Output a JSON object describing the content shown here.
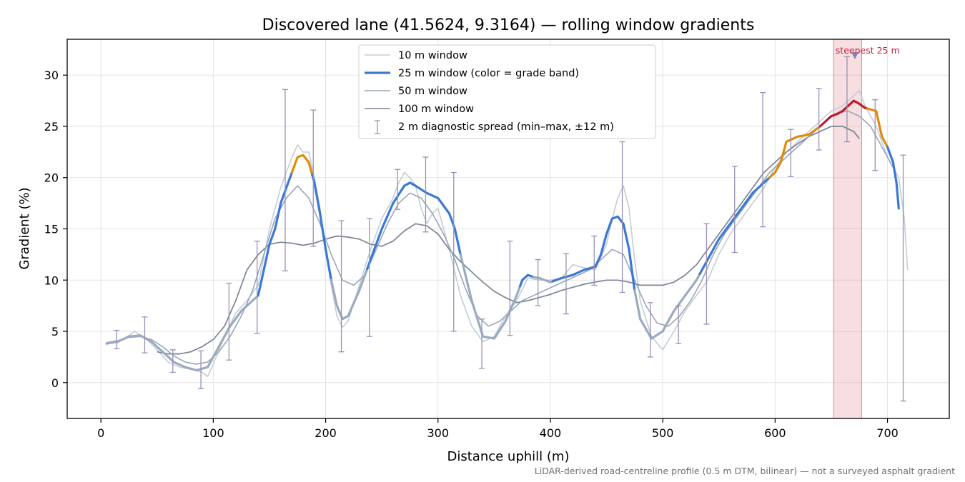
{
  "chart_data": {
    "type": "line",
    "title": "Discovered lane (41.5624, 9.3164) — rolling window gradients",
    "xlabel": "Distance uphill (m)",
    "ylabel": "Gradient (%)",
    "xlim": [
      -30,
      755
    ],
    "ylim": [
      -3.5,
      33.5
    ],
    "xticks": [
      0,
      100,
      200,
      300,
      400,
      500,
      600,
      700
    ],
    "yticks": [
      0,
      5,
      10,
      15,
      20,
      25,
      30
    ],
    "grid": true,
    "legend_position": "top-center",
    "footnote": "LiDAR-derived road-centreline profile (0.5 m DTM, bilinear) — not a surveyed asphalt gradient",
    "highlight": {
      "label": "steepest 25 m",
      "x_start": 652,
      "x_end": 677,
      "marker_x": 671,
      "marker_y": 31.9,
      "color": "#c0203a"
    },
    "colors": {
      "w10": "#c5ccd6",
      "w25_low": "#3a78d4",
      "w25_mid": "#9aabbd",
      "w25_high": "#e08a0a",
      "w25_steep": "#b81c30",
      "w50": "#9aa5b8",
      "w100": "#7b8494",
      "errorbar": "#9a90b8"
    },
    "series": [
      {
        "name": "10 m window",
        "key": "w10",
        "x": [
          5,
          15,
          25,
          30,
          40,
          50,
          60,
          70,
          80,
          90,
          95,
          100,
          110,
          120,
          130,
          140,
          150,
          160,
          165,
          170,
          175,
          180,
          185,
          190,
          195,
          200,
          205,
          210,
          215,
          220,
          230,
          240,
          250,
          260,
          265,
          270,
          275,
          280,
          285,
          290,
          295,
          300,
          310,
          320,
          330,
          340,
          350,
          360,
          370,
          380,
          390,
          400,
          410,
          420,
          430,
          440,
          450,
          455,
          460,
          465,
          470,
          475,
          480,
          490,
          500,
          510,
          520,
          530,
          540,
          550,
          560,
          570,
          580,
          590,
          600,
          610,
          620,
          630,
          640,
          650,
          660,
          665,
          670,
          675,
          680,
          690,
          700,
          710,
          715,
          718
        ],
        "y": [
          3.8,
          3.9,
          4.6,
          5.0,
          4.3,
          3.2,
          2.0,
          1.5,
          1.3,
          1.0,
          0.6,
          1.8,
          4.5,
          6.8,
          8.0,
          9.5,
          15.0,
          19.0,
          20.5,
          22.0,
          23.2,
          22.5,
          22.5,
          20.0,
          17.0,
          13.0,
          9.5,
          6.5,
          5.4,
          6.0,
          9.5,
          13.0,
          16.0,
          18.0,
          19.5,
          20.5,
          20.0,
          19.2,
          17.0,
          15.5,
          16.5,
          17.0,
          13.0,
          8.5,
          5.5,
          4.0,
          4.5,
          6.5,
          8.0,
          10.2,
          10.0,
          10.0,
          10.2,
          11.5,
          11.2,
          11.0,
          13.5,
          16.0,
          18.0,
          19.2,
          17.0,
          12.0,
          8.0,
          4.5,
          3.2,
          5.0,
          7.0,
          8.5,
          10.0,
          12.5,
          14.5,
          16.0,
          17.5,
          19.0,
          21.0,
          22.5,
          23.5,
          24.5,
          25.5,
          26.5,
          27.0,
          27.5,
          28.0,
          28.5,
          27.0,
          25.0,
          22.0,
          20.0,
          16.0,
          11.0
        ]
      },
      {
        "name": "25 m window (color = grade band)",
        "key": "w25",
        "x": [
          5,
          15,
          25,
          35,
          45,
          55,
          65,
          75,
          85,
          95,
          105,
          115,
          125,
          135,
          140,
          145,
          150,
          155,
          160,
          165,
          170,
          175,
          180,
          185,
          190,
          195,
          200,
          205,
          210,
          215,
          220,
          230,
          240,
          250,
          260,
          270,
          275,
          280,
          290,
          300,
          310,
          315,
          320,
          330,
          340,
          350,
          360,
          370,
          375,
          380,
          385,
          390,
          400,
          410,
          420,
          430,
          440,
          445,
          450,
          455,
          460,
          465,
          470,
          475,
          480,
          490,
          500,
          510,
          520,
          530,
          540,
          550,
          560,
          570,
          580,
          590,
          600,
          605,
          610,
          620,
          630,
          640,
          645,
          650,
          655,
          660,
          665,
          670,
          675,
          680,
          690,
          695,
          700,
          705,
          708,
          710
        ],
        "y": [
          3.8,
          4.0,
          4.5,
          4.6,
          4.0,
          3.0,
          2.0,
          1.5,
          1.2,
          1.5,
          3.5,
          5.5,
          7.0,
          8.0,
          8.5,
          11.0,
          13.5,
          15.0,
          17.5,
          19.0,
          20.5,
          22.0,
          22.2,
          21.5,
          19.5,
          16.5,
          13.0,
          10.0,
          7.5,
          6.2,
          6.5,
          9.0,
          12.0,
          15.0,
          17.5,
          19.2,
          19.5,
          19.2,
          18.5,
          18.0,
          16.5,
          15.0,
          12.5,
          8.0,
          4.5,
          4.3,
          6.0,
          8.5,
          10.0,
          10.5,
          10.3,
          10.2,
          9.8,
          10.2,
          10.5,
          11.0,
          11.3,
          12.5,
          14.5,
          16.0,
          16.2,
          15.5,
          13.0,
          9.0,
          6.2,
          4.3,
          5.0,
          7.0,
          8.5,
          10.0,
          12.0,
          14.0,
          15.5,
          17.0,
          18.5,
          19.5,
          20.5,
          21.5,
          23.5,
          24.0,
          24.2,
          25.0,
          25.5,
          26.0,
          26.2,
          26.5,
          27.0,
          27.5,
          27.2,
          26.8,
          26.5,
          24.0,
          23.0,
          21.5,
          19.5,
          17.0
        ]
      },
      {
        "name": "50 m window",
        "key": "w50",
        "x": [
          5,
          15,
          25,
          35,
          45,
          55,
          65,
          75,
          85,
          95,
          105,
          115,
          125,
          135,
          145,
          155,
          165,
          175,
          185,
          195,
          205,
          215,
          225,
          235,
          245,
          255,
          265,
          275,
          285,
          295,
          305,
          315,
          325,
          335,
          345,
          355,
          365,
          375,
          385,
          395,
          405,
          415,
          425,
          435,
          445,
          455,
          465,
          475,
          485,
          495,
          505,
          515,
          525,
          535,
          545,
          555,
          565,
          575,
          585,
          595,
          605,
          615,
          625,
          635,
          645,
          655,
          665,
          675,
          685,
          695,
          705
        ],
        "y": [
          3.9,
          4.1,
          4.4,
          4.5,
          4.2,
          3.5,
          2.6,
          2.0,
          1.8,
          2.0,
          3.0,
          4.5,
          6.5,
          9.0,
          12.5,
          16.0,
          18.0,
          19.2,
          18.0,
          15.5,
          12.5,
          10.0,
          9.5,
          10.5,
          13.0,
          15.5,
          17.5,
          18.5,
          18.0,
          16.5,
          14.5,
          12.0,
          9.0,
          6.5,
          5.5,
          6.0,
          7.0,
          8.0,
          8.5,
          9.0,
          9.5,
          10.0,
          10.5,
          11.0,
          12.0,
          13.0,
          12.5,
          10.0,
          7.5,
          5.8,
          5.5,
          6.5,
          8.0,
          10.0,
          12.5,
          14.5,
          16.0,
          17.5,
          19.0,
          20.5,
          21.5,
          22.5,
          23.5,
          24.5,
          25.5,
          26.3,
          26.5,
          26.0,
          25.0,
          23.0,
          21.0
        ]
      },
      {
        "name": "100 m window",
        "key": "w100",
        "x": [
          50,
          60,
          70,
          80,
          90,
          100,
          110,
          120,
          130,
          140,
          150,
          160,
          170,
          180,
          190,
          200,
          210,
          220,
          230,
          240,
          250,
          260,
          270,
          280,
          290,
          300,
          310,
          320,
          330,
          340,
          350,
          360,
          370,
          380,
          390,
          400,
          410,
          420,
          430,
          440,
          450,
          460,
          470,
          480,
          490,
          500,
          510,
          520,
          530,
          540,
          550,
          560,
          570,
          580,
          590,
          600,
          610,
          620,
          630,
          640,
          650,
          660,
          670,
          675
        ],
        "y": [
          3.0,
          2.8,
          2.8,
          3.0,
          3.5,
          4.2,
          5.5,
          8.0,
          11.0,
          12.5,
          13.5,
          13.7,
          13.6,
          13.4,
          13.6,
          14.0,
          14.3,
          14.2,
          14.0,
          13.5,
          13.3,
          13.8,
          14.8,
          15.5,
          15.3,
          14.5,
          13.0,
          11.8,
          10.8,
          9.8,
          8.9,
          8.3,
          7.8,
          8.0,
          8.3,
          8.6,
          9.0,
          9.3,
          9.6,
          9.8,
          10.0,
          10.0,
          9.8,
          9.5,
          9.5,
          9.5,
          9.8,
          10.5,
          11.5,
          13.0,
          14.5,
          16.0,
          17.5,
          19.0,
          20.5,
          21.5,
          22.5,
          23.3,
          24.0,
          24.5,
          25.0,
          25.0,
          24.5,
          23.8
        ]
      }
    ],
    "band_segments": [
      {
        "band": "mid",
        "x0": 0,
        "x1": 140
      },
      {
        "band": "low",
        "x0": 140,
        "x1": 170
      },
      {
        "band": "high",
        "x0": 170,
        "x1": 188
      },
      {
        "band": "low",
        "x0": 188,
        "x1": 205
      },
      {
        "band": "mid",
        "x0": 205,
        "x1": 237
      },
      {
        "band": "low",
        "x0": 237,
        "x1": 320
      },
      {
        "band": "mid",
        "x0": 320,
        "x1": 373
      },
      {
        "band": "low",
        "x0": 373,
        "x1": 385
      },
      {
        "band": "mid",
        "x0": 385,
        "x1": 402
      },
      {
        "band": "low",
        "x0": 402,
        "x1": 475
      },
      {
        "band": "mid",
        "x0": 475,
        "x1": 533
      },
      {
        "band": "low",
        "x0": 533,
        "x1": 595
      },
      {
        "band": "high",
        "x0": 595,
        "x1": 640
      },
      {
        "band": "steep",
        "x0": 640,
        "x1": 682
      },
      {
        "band": "high",
        "x0": 682,
        "x1": 700
      },
      {
        "band": "low",
        "x0": 700,
        "x1": 715
      }
    ],
    "errorbars": {
      "name": "2 m diagnostic spread (min–max, ±12 m)",
      "points": [
        {
          "x": 14,
          "lo": 3.3,
          "hi": 5.1
        },
        {
          "x": 39,
          "lo": 2.9,
          "hi": 6.4
        },
        {
          "x": 64,
          "lo": 1.0,
          "hi": 3.2
        },
        {
          "x": 89,
          "lo": -0.6,
          "hi": 3.1
        },
        {
          "x": 114,
          "lo": 2.2,
          "hi": 9.7
        },
        {
          "x": 139,
          "lo": 4.8,
          "hi": 13.8
        },
        {
          "x": 164,
          "lo": 10.9,
          "hi": 28.6
        },
        {
          "x": 189,
          "lo": 13.3,
          "hi": 26.6
        },
        {
          "x": 214,
          "lo": 3.0,
          "hi": 15.8
        },
        {
          "x": 239,
          "lo": 4.5,
          "hi": 16.0
        },
        {
          "x": 264,
          "lo": 16.9,
          "hi": 20.8
        },
        {
          "x": 289,
          "lo": 14.7,
          "hi": 22.0
        },
        {
          "x": 314,
          "lo": 5.0,
          "hi": 20.5
        },
        {
          "x": 339,
          "lo": 1.4,
          "hi": 6.2
        },
        {
          "x": 364,
          "lo": 4.6,
          "hi": 13.8
        },
        {
          "x": 389,
          "lo": 7.5,
          "hi": 12.0
        },
        {
          "x": 414,
          "lo": 6.7,
          "hi": 12.6
        },
        {
          "x": 439,
          "lo": 9.5,
          "hi": 14.3
        },
        {
          "x": 464,
          "lo": 8.8,
          "hi": 23.5
        },
        {
          "x": 489,
          "lo": 2.5,
          "hi": 7.8
        },
        {
          "x": 514,
          "lo": 3.8,
          "hi": 7.5
        },
        {
          "x": 539,
          "lo": 5.7,
          "hi": 15.5
        },
        {
          "x": 564,
          "lo": 12.7,
          "hi": 21.1
        },
        {
          "x": 589,
          "lo": 15.2,
          "hi": 28.3
        },
        {
          "x": 614,
          "lo": 20.1,
          "hi": 24.7
        },
        {
          "x": 639,
          "lo": 22.7,
          "hi": 28.7
        },
        {
          "x": 664,
          "lo": 23.5,
          "hi": 31.8
        },
        {
          "x": 689,
          "lo": 20.7,
          "hi": 27.6
        },
        {
          "x": 714,
          "lo": -1.8,
          "hi": 22.2
        }
      ]
    }
  }
}
